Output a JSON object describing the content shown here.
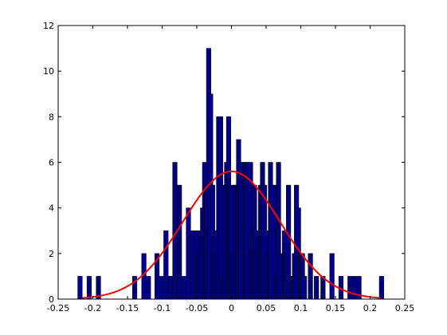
{
  "chart_data": {
    "type": "bar",
    "subtype": "histogram-with-fitted-curve",
    "title": "",
    "xlabel": "",
    "ylabel": "",
    "xlim": [
      -0.25,
      0.25
    ],
    "ylim": [
      0,
      12
    ],
    "x_ticks": [
      -0.25,
      -0.2,
      -0.15,
      -0.1,
      -0.05,
      0,
      0.05,
      0.1,
      0.15,
      0.2,
      0.25
    ],
    "x_tick_labels": [
      "-0.25",
      "-0.2",
      "-0.15",
      "-0.1",
      "-0.05",
      "0",
      "0.05",
      "0.1",
      "0.15",
      "0.2",
      "0.25"
    ],
    "y_ticks": [
      0,
      2,
      4,
      6,
      8,
      10,
      12
    ],
    "y_tick_labels": [
      "0",
      "2",
      "4",
      "6",
      "8",
      "10",
      "12"
    ],
    "grid": false,
    "legend": "none",
    "bar_color": "#000080",
    "bar_edge_color": "#000000",
    "bars": [
      {
        "x": -0.2185,
        "y": 1
      },
      {
        "x": -0.2052,
        "y": 1
      },
      {
        "x": -0.1919,
        "y": 1
      },
      {
        "x": -0.1396,
        "y": 1
      },
      {
        "x": -0.1263,
        "y": 2
      },
      {
        "x": -0.1198,
        "y": 1
      },
      {
        "x": -0.1074,
        "y": 2
      },
      {
        "x": -0.101,
        "y": 1
      },
      {
        "x": -0.0945,
        "y": 3
      },
      {
        "x": -0.088,
        "y": 1
      },
      {
        "x": -0.088,
        "y": 1
      },
      {
        "x": -0.0816,
        "y": 6
      },
      {
        "x": -0.0751,
        "y": 5
      },
      {
        "x": -0.0686,
        "y": 1
      },
      {
        "x": -0.0621,
        "y": 4
      },
      {
        "x": -0.056,
        "y": 3
      },
      {
        "x": -0.0531,
        "y": 2
      },
      {
        "x": -0.0502,
        "y": 3
      },
      {
        "x": -0.0474,
        "y": 2
      },
      {
        "x": -0.0445,
        "y": 3
      },
      {
        "x": -0.0416,
        "y": 4
      },
      {
        "x": -0.0387,
        "y": 6
      },
      {
        "x": -0.0358,
        "y": 5
      },
      {
        "x": -0.0329,
        "y": 11
      },
      {
        "x": -0.0301,
        "y": 9
      },
      {
        "x": -0.0272,
        "y": 5
      },
      {
        "x": -0.0243,
        "y": 2
      },
      {
        "x": -0.0214,
        "y": 3
      },
      {
        "x": -0.0185,
        "y": 8
      },
      {
        "x": -0.0157,
        "y": 8
      },
      {
        "x": -0.0128,
        "y": 1
      },
      {
        "x": -0.0099,
        "y": 5
      },
      {
        "x": -0.007,
        "y": 6
      },
      {
        "x": -0.0041,
        "y": 8
      },
      {
        "x": -0.0013,
        "y": 5
      },
      {
        "x": 0.0016,
        "y": 2
      },
      {
        "x": 0.0045,
        "y": 5
      },
      {
        "x": 0.0074,
        "y": 5
      },
      {
        "x": 0.0103,
        "y": 7
      },
      {
        "x": 0.0131,
        "y": 5
      },
      {
        "x": 0.016,
        "y": 6
      },
      {
        "x": 0.0189,
        "y": 6
      },
      {
        "x": 0.0218,
        "y": 6
      },
      {
        "x": 0.0247,
        "y": 2
      },
      {
        "x": 0.0275,
        "y": 6
      },
      {
        "x": 0.0304,
        "y": 3
      },
      {
        "x": 0.0333,
        "y": 5
      },
      {
        "x": 0.0362,
        "y": 2
      },
      {
        "x": 0.0391,
        "y": 3
      },
      {
        "x": 0.0419,
        "y": 5
      },
      {
        "x": 0.0448,
        "y": 6
      },
      {
        "x": 0.0477,
        "y": 5
      },
      {
        "x": 0.0506,
        "y": 3
      },
      {
        "x": 0.0535,
        "y": 2
      },
      {
        "x": 0.0563,
        "y": 6
      },
      {
        "x": 0.0592,
        "y": 3
      },
      {
        "x": 0.0621,
        "y": 5
      },
      {
        "x": 0.065,
        "y": 1
      },
      {
        "x": 0.0679,
        "y": 6
      },
      {
        "x": 0.0707,
        "y": 2
      },
      {
        "x": 0.0736,
        "y": 1
      },
      {
        "x": 0.0765,
        "y": 3
      },
      {
        "x": 0.0794,
        "y": 2
      },
      {
        "x": 0.0823,
        "y": 5
      },
      {
        "x": 0.0851,
        "y": 1
      },
      {
        "x": 0.088,
        "y": 1
      },
      {
        "x": 0.0909,
        "y": 2
      },
      {
        "x": 0.0938,
        "y": 5
      },
      {
        "x": 0.0967,
        "y": 4
      },
      {
        "x": 0.0995,
        "y": 2
      },
      {
        "x": 0.1024,
        "y": 2
      },
      {
        "x": 0.1053,
        "y": 1
      },
      {
        "x": 0.1139,
        "y": 2
      },
      {
        "x": 0.1226,
        "y": 1
      },
      {
        "x": 0.132,
        "y": 1
      },
      {
        "x": 0.145,
        "y": 2
      },
      {
        "x": 0.158,
        "y": 1
      },
      {
        "x": 0.171,
        "y": 1
      },
      {
        "x": 0.1775,
        "y": 1
      },
      {
        "x": 0.184,
        "y": 1
      },
      {
        "x": 0.2165,
        "y": 1
      }
    ],
    "bin_width": 0.0065,
    "fit_curve": {
      "type": "line",
      "color": "#ff0000",
      "distribution": "normal",
      "mean": 0.0,
      "sigma": 0.07,
      "peak": 5.6,
      "x_range": [
        -0.215,
        0.215
      ]
    }
  }
}
